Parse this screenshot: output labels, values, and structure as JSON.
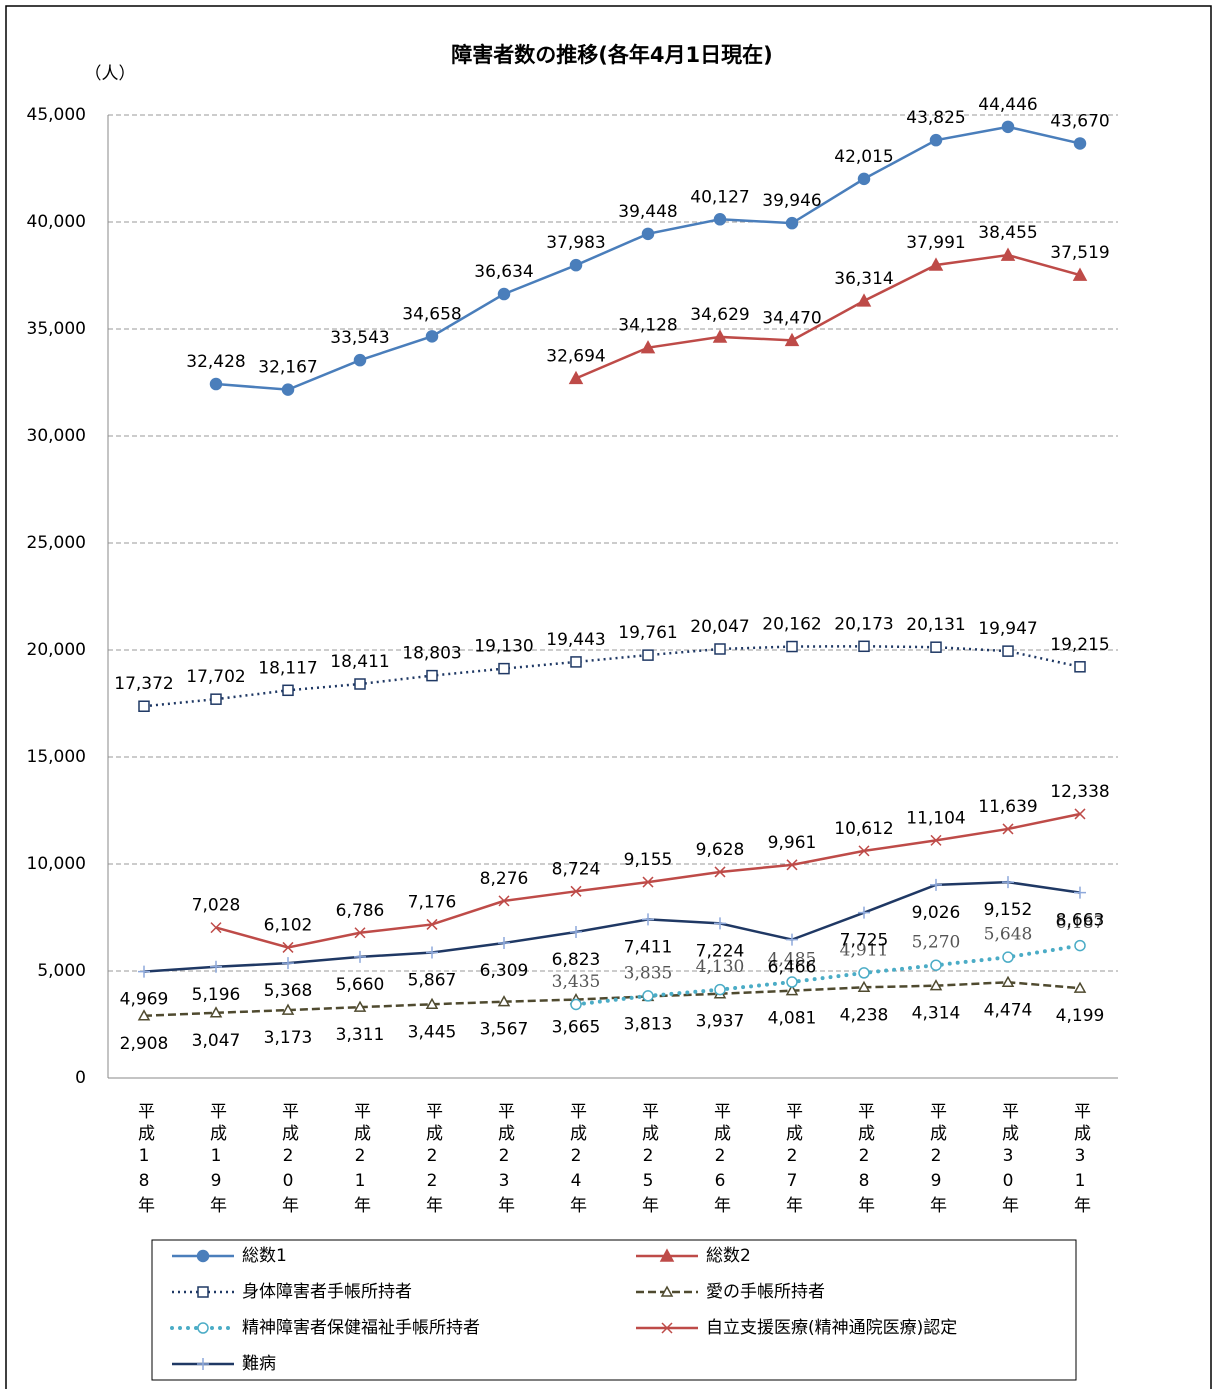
{
  "chart_data": {
    "type": "line",
    "title": "障害者数の推移(各年4月1日現在)",
    "y_label": "（人）",
    "categories": [
      "平成18年",
      "平成19年",
      "平成20年",
      "平成21年",
      "平成22年",
      "平成23年",
      "平成24年",
      "平成25年",
      "平成26年",
      "平成27年",
      "平成28年",
      "平成29年",
      "平成30年",
      "平成31年"
    ],
    "ylim": [
      0,
      45000
    ],
    "yticks": [
      0,
      {
        "value": 5000,
        "label": "5,000"
      },
      {
        "value": 10000,
        "label": "10,000"
      },
      {
        "value": 15000,
        "label": "15,000"
      },
      {
        "value": 20000,
        "label": "20,000"
      },
      {
        "value": 25000,
        "label": "25,000"
      },
      {
        "value": 30000,
        "label": "30,000"
      },
      {
        "value": 35000,
        "label": "35,000"
      },
      {
        "value": 40000,
        "label": "40,000"
      },
      {
        "value": 45000,
        "label": "45,000"
      }
    ],
    "grid": true,
    "legend": "bottom",
    "series": [
      {
        "name": "総数1",
        "color": "#4a7ebb",
        "marker": "circle",
        "dash": "solid",
        "values": [
          null,
          32428,
          32167,
          33543,
          34658,
          36634,
          37983,
          39448,
          40127,
          39946,
          42015,
          43825,
          44446,
          43670
        ],
        "value_labels": [
          null,
          "32,428",
          "32,167",
          "33,543",
          "34,658",
          "36,634",
          "37,983",
          "39,448",
          "40,127",
          "39,946",
          "42,015",
          "43,825",
          "44,446",
          "43,670"
        ]
      },
      {
        "name": "総数2",
        "color": "#be4b48",
        "marker": "triangle",
        "dash": "solid",
        "values": [
          null,
          null,
          null,
          null,
          null,
          null,
          32694,
          34128,
          34629,
          34470,
          36314,
          37991,
          38455,
          37519
        ],
        "value_labels": [
          null,
          null,
          null,
          null,
          null,
          null,
          "32,694",
          "34,128",
          "34,629",
          "34,470",
          "36,314",
          "37,991",
          "38,455",
          "37,519"
        ]
      },
      {
        "name": "身体障害者手帳所持者",
        "color": "#1f3864",
        "marker": "square-open",
        "dash": "dot",
        "values": [
          17372,
          17702,
          18117,
          18411,
          18803,
          19130,
          19443,
          19761,
          20047,
          20162,
          20173,
          20131,
          19947,
          19215
        ],
        "value_labels": [
          "17,372",
          "17,702",
          "18,117",
          "18,411",
          "18,803",
          "19,130",
          "19,443",
          "19,761",
          "20,047",
          "20,162",
          "20,173",
          "20,131",
          "19,947",
          "19,215"
        ]
      },
      {
        "name": "愛の手帳所持者",
        "color": "#4f4a2f",
        "marker": "triangle-open",
        "dash": "dash",
        "values": [
          2908,
          3047,
          3173,
          3311,
          3445,
          3567,
          3665,
          3813,
          3937,
          4081,
          4238,
          4314,
          4474,
          4199
        ],
        "value_labels": [
          "2,908",
          "3,047",
          "3,173",
          "3,311",
          "3,445",
          "3,567",
          "3,665",
          "3,813",
          "3,937",
          "4,081",
          "4,238",
          "4,314",
          "4,474",
          "4,199"
        ]
      },
      {
        "name": "精神障害者保健福祉手帳所持者",
        "color": "#4bacc6",
        "marker": "circle-open",
        "dash": "bigdot",
        "values": [
          null,
          null,
          null,
          null,
          null,
          null,
          3435,
          3835,
          4130,
          4485,
          4911,
          5270,
          5648,
          6187
        ],
        "value_labels": [
          null,
          null,
          null,
          null,
          null,
          null,
          "3,435",
          "3,835",
          "4,130",
          "4,485",
          "4,911",
          "5,270",
          "5,648",
          "6,187"
        ]
      },
      {
        "name": "自立支援医療(精神通院医療)認定",
        "color": "#be4b48",
        "marker": "x",
        "dash": "solid",
        "values": [
          null,
          7028,
          6102,
          6786,
          7176,
          8276,
          8724,
          9155,
          9628,
          9961,
          10612,
          11104,
          11639,
          12338
        ],
        "value_labels": [
          null,
          "7,028",
          "6,102",
          "6,786",
          "7,176",
          "8,276",
          "8,724",
          "9,155",
          "9,628",
          "9,961",
          "10,612",
          "11,104",
          "11,639",
          "12,338"
        ]
      },
      {
        "name": "難病",
        "color": "#1f3864",
        "marker": "plus",
        "dash": "solid",
        "values": [
          4969,
          5196,
          5368,
          5660,
          5867,
          6309,
          6823,
          7411,
          7224,
          6466,
          7725,
          9026,
          9152,
          8663
        ],
        "value_labels": [
          "4,969",
          "5,196",
          "5,368",
          "5,660",
          "5,867",
          "6,309",
          "6,823",
          "7,411",
          "7,224",
          "6,466",
          "7,725",
          "9,026",
          "9,152",
          "8,663"
        ]
      }
    ]
  }
}
